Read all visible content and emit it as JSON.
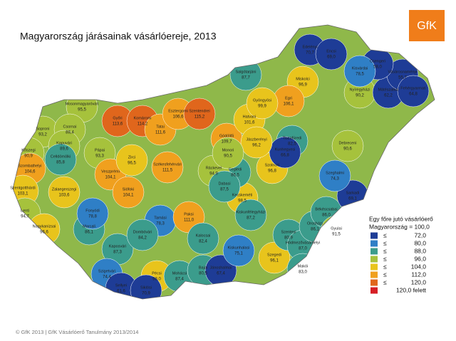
{
  "title": "Magyarország járásainak vásárlóereje, 2013",
  "logo": "GfK",
  "footer": "© GfK 2013 | GfK Vásárlóerő Tanulmány 2013/2014",
  "legend": {
    "title": "Egy főre jutó vásárlóerő",
    "subtitle": "Magyarország = 100,0",
    "symbol": "≤",
    "bins": [
      {
        "value": 72,
        "label": "72,0",
        "color": "#1e3c96"
      },
      {
        "value": 80,
        "label": "80,0",
        "color": "#2f7fc6"
      },
      {
        "value": 88,
        "label": "88,0",
        "color": "#3b9c8c"
      },
      {
        "value": 96,
        "label": "96,0",
        "color": "#a6c23c"
      },
      {
        "value": 104,
        "label": "104,0",
        "color": "#e8c41c"
      },
      {
        "value": 112,
        "label": "112,0",
        "color": "#f0a01e"
      },
      {
        "value": 120,
        "label": "120,0",
        "color": "#e0661c"
      }
    ],
    "above": {
      "label": "120,0 felett",
      "color": "#d61f26"
    }
  },
  "districts": [
    {
      "name": "Mosonmagyaróvári",
      "value": 95.5,
      "label": "95,5"
    },
    {
      "name": "Győri",
      "value": 113.6,
      "label": "113,6"
    },
    {
      "name": "Komáromi",
      "value": 114.2,
      "label": "114,2"
    },
    {
      "name": "Tatai",
      "value": 111.6,
      "label": "111,6"
    },
    {
      "name": "Esztergomi",
      "value": 106.6,
      "label": "106,6"
    },
    {
      "name": "Szentendrei",
      "value": 115.2,
      "label": "115,2"
    },
    {
      "name": "Gödöllői",
      "value": 109.7,
      "label": "109,7"
    },
    {
      "name": "Soproni",
      "value": 93.2,
      "label": "93,2"
    },
    {
      "name": "Csornai",
      "value": 88.4,
      "label": "88,4"
    },
    {
      "name": "Kapuvári",
      "value": 89.6,
      "label": "89,6"
    },
    {
      "name": "Kőszegi",
      "value": 90.9,
      "label": "90,9"
    },
    {
      "name": "Szombathelyi",
      "value": 104.6,
      "label": "104,6"
    },
    {
      "name": "Celldömölki",
      "value": 85.8,
      "label": "85,8"
    },
    {
      "name": "Pápai",
      "value": 93.3,
      "label": "93,3"
    },
    {
      "name": "Veszprémi",
      "value": 104.1,
      "label": "104,1"
    },
    {
      "name": "Zirci",
      "value": 96.5,
      "label": "96,5"
    },
    {
      "name": "Székesfehérvári",
      "value": 111.5,
      "label": "111,5"
    },
    {
      "name": "Szentgotthárdi",
      "value": 103.1,
      "label": "103,1"
    },
    {
      "name": "Zalaegerszegi",
      "value": 103.6,
      "label": "103,6"
    },
    {
      "name": "Lenti",
      "value": 94.7,
      "label": "94,7"
    },
    {
      "name": "Nagykanizsai",
      "value": 96.6,
      "label": "96,6"
    },
    {
      "name": "Marcali",
      "value": 86.1,
      "label": "86,1"
    },
    {
      "name": "Fonyódi",
      "value": 78.8,
      "label": "78,8"
    },
    {
      "name": "Siófoki",
      "value": 104.1,
      "label": "104,1"
    },
    {
      "name": "Tamási",
      "value": 78.3,
      "label": "78,3"
    },
    {
      "name": "Paksi",
      "value": 111.0,
      "label": "111,0"
    },
    {
      "name": "Kaposvári",
      "value": 87.3,
      "label": "87,3"
    },
    {
      "name": "Dombóvári",
      "value": 84.2,
      "label": "84,2"
    },
    {
      "name": "Pécsi",
      "value": 98.0,
      "label": "98,0"
    },
    {
      "name": "Szigetvári",
      "value": 74.4,
      "label": "74,4"
    },
    {
      "name": "Mohácsi",
      "value": 87.4,
      "label": "87,4"
    },
    {
      "name": "Sellyei",
      "value": 61.6,
      "label": "61,6"
    },
    {
      "name": "Siklósi",
      "value": 70.9,
      "label": "70,9"
    },
    {
      "name": "Bajai",
      "value": 80.5,
      "label": "80,5"
    },
    {
      "name": "Kalocsai",
      "value": 82.4,
      "label": "82,4"
    },
    {
      "name": "Jánoshalmai",
      "value": 67.4,
      "label": "67,4"
    },
    {
      "name": "Kiskunhalasi",
      "value": 75.1,
      "label": "75,1"
    },
    {
      "name": "Kecskeméti",
      "value": 98.5,
      "label": "98,5"
    },
    {
      "name": "Kiskunfélegyházi",
      "value": 87.2,
      "label": "87,2"
    },
    {
      "name": "Ceglédi",
      "value": 86.5,
      "label": "86,5"
    },
    {
      "name": "Szolnoki",
      "value": 96.8,
      "label": "96,8"
    },
    {
      "name": "Szegedi",
      "value": 96.1,
      "label": "96,1"
    },
    {
      "name": "Szentesi",
      "value": 80.9,
      "label": "80,9"
    },
    {
      "name": "Hódmezővásárhelyi",
      "value": 87.0,
      "label": "87,0"
    },
    {
      "name": "Makói",
      "value": 83.0,
      "label": "83,0"
    },
    {
      "name": "Orosházi",
      "value": 86.1,
      "label": "86,1"
    },
    {
      "name": "Békéscsabai",
      "value": 86.0,
      "label": "86,0"
    },
    {
      "name": "Gyulai",
      "value": 91.5,
      "label": "91,5"
    },
    {
      "name": "Sarkadi",
      "value": 69.1,
      "label": "69,1"
    },
    {
      "name": "Szeghalmi",
      "value": 74.3,
      "label": "74,3"
    },
    {
      "name": "Debreceni",
      "value": 90.6,
      "label": "90,6"
    },
    {
      "name": "Miskolci",
      "value": 96.9,
      "label": "96,9"
    },
    {
      "name": "Egri",
      "value": 106.1,
      "label": "106,1"
    },
    {
      "name": "Hatvani",
      "value": 101.6,
      "label": "101,6"
    },
    {
      "name": "Gyöngyösi",
      "value": 99.9,
      "label": "99,9"
    },
    {
      "name": "Salgótarjáni",
      "value": 87.7,
      "label": "87,7"
    },
    {
      "name": "Nyíregyházi",
      "value": 90.2,
      "label": "90,2"
    },
    {
      "name": "Mátészalkai",
      "value": 62.2,
      "label": "62,2"
    },
    {
      "name": "Vásárosnaményi",
      "value": 55.7,
      "label": "55,7"
    },
    {
      "name": "Fehérgyarmati",
      "value": 64.8,
      "label": "64,8"
    },
    {
      "name": "Csengeri",
      "value": 58.0,
      "label": "58,0"
    },
    {
      "name": "Edelényi",
      "value": 70.7,
      "label": "70,7"
    },
    {
      "name": "Encsi",
      "value": 69.0,
      "label": "69,0"
    },
    {
      "name": "Kisvárdai",
      "value": 78.5,
      "label": "78,5"
    },
    {
      "name": "Tiszafüredi",
      "value": 82.5,
      "label": "82,5"
    },
    {
      "name": "Kunhegyesi",
      "value": 66.8,
      "label": "66,8"
    },
    {
      "name": "Jászberényi",
      "value": 96.2,
      "label": "96,2"
    },
    {
      "name": "Ráckevei",
      "value": 94.9,
      "label": "94,9"
    },
    {
      "name": "Dabasi",
      "value": 87.5,
      "label": "87,5"
    },
    {
      "name": "Monori",
      "value": 90.5,
      "label": "90,5"
    }
  ]
}
